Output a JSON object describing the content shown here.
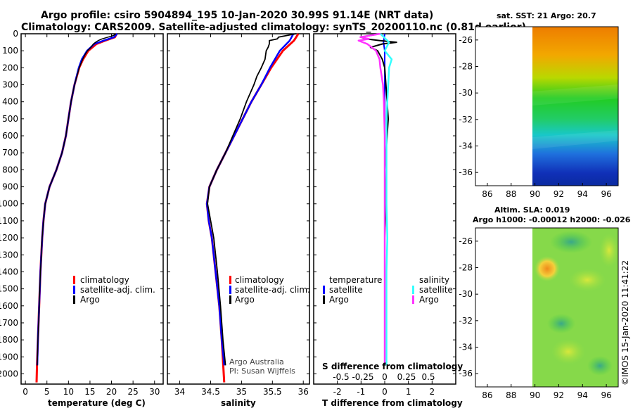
{
  "header": {
    "title_line1": "Argo profile: csiro 5904894_195 10-Jan-2020 30.99S 91.14E (NRT data)",
    "title_line2": "Climatology: CARS2009. Satellite-adjusted climatology: synTS_20200110.nc (0.81d earlier)"
  },
  "colors": {
    "climatology": "#ff0000",
    "satellite": "#0000ff",
    "argo": "#000000",
    "t_sat": "#00e5ee",
    "s_argo": "#ff33ff",
    "s_sat": "#33ffff"
  },
  "chart_data": [
    {
      "type": "line",
      "id": "temperature",
      "xlabel": "temperature (deg C)",
      "xlim": [
        -1,
        32
      ],
      "ylim": [
        2060,
        0
      ],
      "xticks": [
        "0",
        "5",
        "10",
        "15",
        "20",
        "25",
        "30"
      ],
      "yticks": [
        "0",
        "100",
        "200",
        "300",
        "400",
        "500",
        "600",
        "700",
        "800",
        "900",
        "1000",
        "1100",
        "1200",
        "1300",
        "1400",
        "1500",
        "1600",
        "1700",
        "1800",
        "1900",
        "2000"
      ],
      "legend": [
        "climatology",
        "satellite-adj. clim.",
        "Argo"
      ],
      "series": [
        {
          "name": "climatology",
          "depth": [
            0,
            20,
            40,
            60,
            100,
            150,
            200,
            300,
            400,
            500,
            600,
            700,
            800,
            900,
            1000,
            1100,
            1200,
            1400,
            1600,
            1800,
            1950,
            2050
          ],
          "values": [
            21.2,
            20.8,
            18.5,
            16.5,
            14.6,
            13.4,
            12.5,
            11.4,
            10.6,
            10.0,
            9.4,
            8.5,
            7.2,
            5.6,
            4.6,
            4.2,
            3.9,
            3.5,
            3.2,
            2.9,
            2.7,
            2.6
          ]
        },
        {
          "name": "satellite-adj. clim.",
          "depth": [
            0,
            20,
            40,
            60,
            100,
            150,
            200,
            300,
            400,
            500,
            600,
            700,
            800,
            900,
            1000,
            1100,
            1200,
            1400,
            1600,
            1800,
            1950
          ],
          "values": [
            21.3,
            20.6,
            18.2,
            16.0,
            14.3,
            13.1,
            12.4,
            11.4,
            10.6,
            10.0,
            9.4,
            8.5,
            7.2,
            5.6,
            4.6,
            4.2,
            3.9,
            3.5,
            3.2,
            2.9,
            2.75
          ]
        },
        {
          "name": "Argo",
          "depth": [
            0,
            10,
            20,
            30,
            40,
            50,
            60,
            80,
            100,
            120,
            150,
            200,
            300,
            400,
            500,
            600,
            700,
            800,
            900,
            1000,
            1100,
            1200,
            1400,
            1600,
            1800,
            1950
          ],
          "values": [
            21.0,
            20.5,
            19.2,
            17.8,
            16.9,
            16.3,
            15.8,
            15.2,
            14.4,
            13.9,
            13.3,
            12.5,
            11.4,
            10.6,
            10.0,
            9.4,
            8.5,
            7.2,
            5.6,
            4.6,
            4.2,
            3.9,
            3.5,
            3.2,
            2.9,
            2.75
          ]
        }
      ]
    },
    {
      "type": "line",
      "id": "salinity",
      "xlabel": "salinity",
      "xlim": [
        33.8,
        36.1
      ],
      "ylim": [
        2060,
        0
      ],
      "xticks": [
        "34",
        "34.5",
        "35",
        "35.5",
        "36"
      ],
      "legend": [
        "climatology",
        "satellite-adj. clim.",
        "Argo"
      ],
      "annotation_line1": "Argo Australia",
      "annotation_line2": "PI: Susan Wijffels",
      "series": [
        {
          "name": "climatology",
          "depth": [
            0,
            40,
            100,
            200,
            300,
            400,
            500,
            600,
            700,
            800,
            900,
            1000,
            1100,
            1200,
            1400,
            1600,
            1800,
            2050
          ],
          "values": [
            35.92,
            35.85,
            35.67,
            35.48,
            35.32,
            35.16,
            35.02,
            34.88,
            34.74,
            34.6,
            34.48,
            34.44,
            34.47,
            34.52,
            34.58,
            34.64,
            34.68,
            34.72
          ]
        },
        {
          "name": "satellite-adj. clim.",
          "depth": [
            0,
            40,
            100,
            200,
            300,
            400,
            500,
            600,
            700,
            800,
            900,
            1000,
            1100,
            1200,
            1400,
            1600,
            1800,
            1950
          ],
          "values": [
            35.84,
            35.78,
            35.62,
            35.46,
            35.32,
            35.16,
            35.02,
            34.88,
            34.74,
            34.6,
            34.48,
            34.44,
            34.47,
            34.52,
            34.58,
            34.64,
            34.68,
            34.72
          ]
        },
        {
          "name": "Argo",
          "depth": [
            0,
            20,
            30,
            40,
            60,
            80,
            100,
            150,
            200,
            250,
            300,
            400,
            500,
            600,
            700,
            800,
            900,
            1000,
            1100,
            1200,
            1400,
            1600,
            1800,
            1950
          ],
          "values": [
            35.88,
            35.6,
            35.58,
            35.45,
            35.45,
            35.43,
            35.4,
            35.38,
            35.32,
            35.25,
            35.2,
            35.08,
            34.98,
            34.86,
            34.74,
            34.6,
            34.48,
            34.45,
            34.5,
            34.55,
            34.61,
            34.66,
            34.7,
            34.74
          ]
        }
      ]
    },
    {
      "type": "line",
      "id": "differences",
      "xlabel": "T difference from climatology",
      "xlabel_top": "S difference from climatology",
      "xlim": [
        -3,
        3
      ],
      "ylim": [
        2060,
        0
      ],
      "xticks": [
        "-2",
        "-1",
        "0",
        "1",
        "2"
      ],
      "xticks_top": [
        "-0.5",
        "-0.25",
        "0",
        "0.25",
        "0.5"
      ],
      "legend_left_title": "temperature",
      "legend_right_title": "salinity",
      "legend": [
        "satellite",
        "Argo"
      ],
      "series": [
        {
          "name": "temperature satellite",
          "depth": [
            0,
            50,
            100,
            200,
            400,
            600,
            800,
            1000,
            1200,
            1400,
            1600,
            1800,
            1950
          ],
          "values": [
            0,
            -0.05,
            0,
            0,
            0,
            0,
            0,
            0,
            0,
            0,
            0,
            0,
            0
          ]
        },
        {
          "name": "temperature Argo",
          "depth": [
            0,
            10,
            20,
            30,
            40,
            50,
            60,
            80,
            100,
            150,
            200,
            300,
            400,
            500,
            600,
            800,
            1000,
            1200,
            1400,
            1600,
            1800,
            1950
          ],
          "values": [
            -0.2,
            -0.6,
            -1.0,
            -0.8,
            -0.2,
            0.5,
            -0.1,
            -0.6,
            -0.3,
            -0.1,
            0,
            0.05,
            0.1,
            0.15,
            0.1,
            0,
            0.05,
            0,
            0,
            0,
            0,
            0
          ]
        },
        {
          "name": "salinity satellite",
          "depth": [
            0,
            50,
            100,
            150,
            200,
            300,
            400,
            500,
            600,
            800,
            1000,
            1200,
            1400,
            1600,
            1800,
            1950
          ],
          "values": [
            -0.05,
            0.05,
            0,
            0.08,
            0.05,
            0.04,
            0.03,
            0.02,
            0.02,
            0.02,
            0.02,
            0.03,
            0.02,
            0.02,
            0.02,
            0.02
          ]
        },
        {
          "name": "salinity Argo",
          "depth": [
            0,
            20,
            30,
            40,
            60,
            80,
            100,
            150,
            200,
            300,
            400,
            600,
            800,
            1000,
            1200,
            1400,
            1600,
            1800,
            1950
          ],
          "values": [
            -0.05,
            -0.28,
            -0.18,
            -0.3,
            -0.2,
            -0.15,
            -0.1,
            -0.06,
            -0.05,
            -0.02,
            -0.01,
            0,
            0,
            0,
            0,
            0,
            0,
            0,
            0
          ]
        }
      ]
    },
    {
      "type": "heatmap",
      "id": "sst_map",
      "title": "sat. SST: 21 Argo: 20.7",
      "xlim": [
        85,
        97
      ],
      "ylim": [
        -37,
        -25
      ],
      "xticks": [
        "86",
        "88",
        "90",
        "92",
        "94",
        "96"
      ],
      "yticks": [
        "-26",
        "-28",
        "-30",
        "-32",
        "-34",
        "-36"
      ]
    },
    {
      "type": "heatmap",
      "id": "sla_map",
      "title_line1": "Altim. SLA: 0.019",
      "title_line2": "Argo h1000: -0.00012 h2000: -0.026",
      "xlim": [
        85,
        97
      ],
      "ylim": [
        -37,
        -25
      ],
      "xticks": [
        "86",
        "88",
        "90",
        "92",
        "94",
        "96"
      ],
      "yticks": [
        "-26",
        "-28",
        "-30",
        "-32",
        "-34",
        "-36"
      ]
    }
  ],
  "footer": {
    "credit": "©IMOS 15-Jan-2020 11:41:22"
  }
}
